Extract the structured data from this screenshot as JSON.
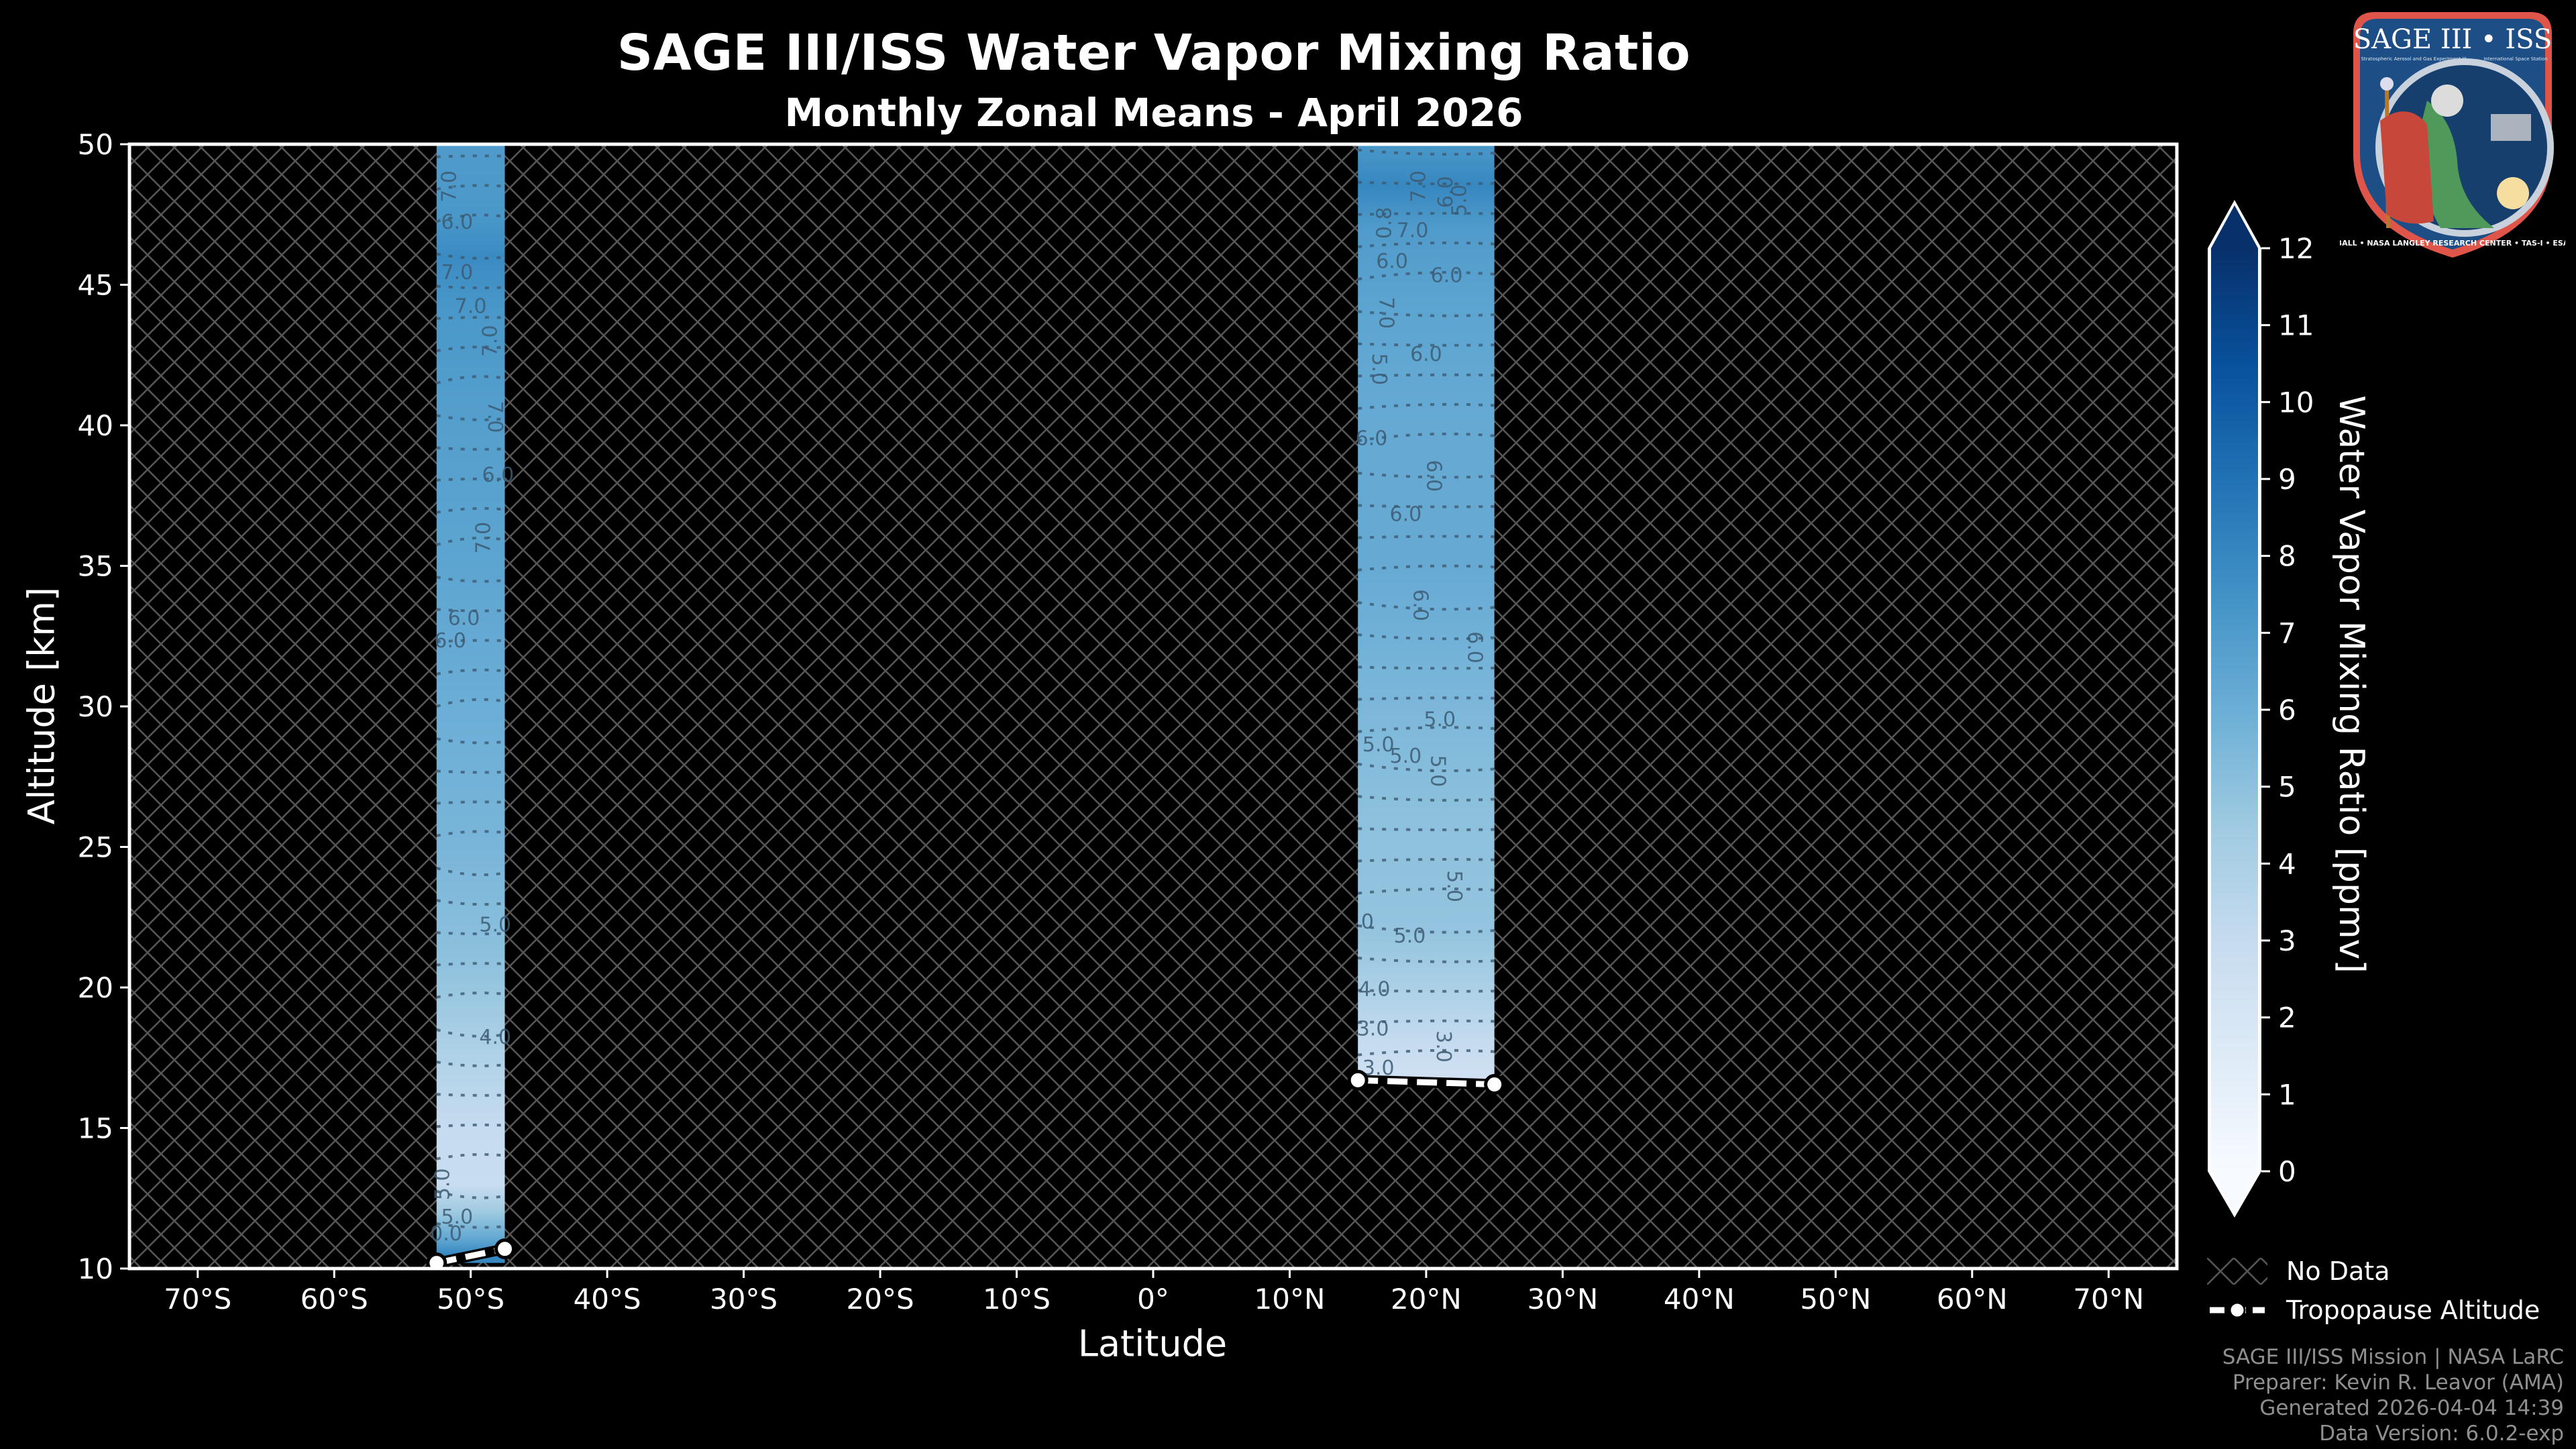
{
  "header": {
    "title": "SAGE III/ISS Water Vapor Mixing Ratio",
    "subtitle": "Monthly Zonal Means - April 2026"
  },
  "logo": {
    "name": "SAGE III • ISS",
    "subtitle_left": "Stratospheric Aerosol and Gas Experiment III",
    "subtitle_right": "International Space Station",
    "ring_text": "BALL • NASA LANGLEY RESEARCH CENTER • TAS-I • ESA"
  },
  "axes": {
    "xlabel": "Latitude",
    "ylabel": "Altitude [km]",
    "xticks": [
      "70°S",
      "60°S",
      "50°S",
      "40°S",
      "30°S",
      "20°S",
      "10°S",
      "0°",
      "10°N",
      "20°N",
      "30°N",
      "40°N",
      "50°N",
      "60°N",
      "70°N"
    ],
    "yticks": [
      "10",
      "15",
      "20",
      "25",
      "30",
      "35",
      "40",
      "45",
      "50"
    ]
  },
  "colorbar": {
    "label": "Water Vapor Mixing Ratio [ppmv]",
    "ticks": [
      "0",
      "1",
      "2",
      "3",
      "4",
      "5",
      "6",
      "7",
      "8",
      "9",
      "10",
      "11",
      "12"
    ],
    "colormap": "Blues",
    "extend": "both"
  },
  "legend": {
    "items": [
      {
        "label": "No Data",
        "symbol": "hatch"
      },
      {
        "label": "Tropopause Altitude",
        "symbol": "dashed-line-circle"
      }
    ]
  },
  "footer": {
    "lines": [
      "SAGE III/ISS Mission | NASA LaRC",
      "Preparer: Kevin R. Leavor (AMA)",
      "Generated 2026-04-04 14:39",
      "Data Version: 6.0.2-exp"
    ]
  },
  "colors": {
    "background": "#000000",
    "hatch": "#555555",
    "axis": "#ffffff",
    "contour": "#3c5a72",
    "cmap_low": "#f7fbff",
    "cmap_high": "#08306b",
    "footer_text": "#8f8f8f"
  },
  "chart_data": {
    "type": "heatmap",
    "title": "SAGE III/ISS Water Vapor Mixing Ratio",
    "subtitle": "Monthly Zonal Means - April 2026",
    "xlabel": "Latitude",
    "ylabel": "Altitude [km]",
    "xlim": [
      -75,
      75
    ],
    "ylim": [
      10,
      50
    ],
    "zlabel": "Water Vapor Mixing Ratio [ppmv]",
    "zlim": [
      0,
      12
    ],
    "grid": false,
    "legend_position": "lower right (outside axes)",
    "no_data_fill": "hatched",
    "columns": [
      {
        "lat_center": -50,
        "lat_min": -52.5,
        "lat_max": -47.5,
        "alt_min": 10.2,
        "alt_max": 50,
        "profile": [
          {
            "alt": 10.5,
            "ppmv": 8.0
          },
          {
            "alt": 11.0,
            "ppmv": 6.5
          },
          {
            "alt": 12.0,
            "ppmv": 4.5
          },
          {
            "alt": 13.0,
            "ppmv": 2.8
          },
          {
            "alt": 15.0,
            "ppmv": 3.0
          },
          {
            "alt": 18.0,
            "ppmv": 4.0
          },
          {
            "alt": 21.0,
            "ppmv": 5.0
          },
          {
            "alt": 25.0,
            "ppmv": 5.6
          },
          {
            "alt": 30.0,
            "ppmv": 6.0
          },
          {
            "alt": 35.0,
            "ppmv": 6.5
          },
          {
            "alt": 40.0,
            "ppmv": 6.8
          },
          {
            "alt": 44.0,
            "ppmv": 7.2
          },
          {
            "alt": 46.0,
            "ppmv": 7.8
          },
          {
            "alt": 47.5,
            "ppmv": 7.2
          },
          {
            "alt": 50.0,
            "ppmv": 7.0
          }
        ]
      },
      {
        "lat_center": 20,
        "lat_min": 15,
        "lat_max": 25,
        "alt_min": 16.6,
        "alt_max": 50,
        "profile": [
          {
            "alt": 17.0,
            "ppmv": 2.5
          },
          {
            "alt": 18.0,
            "ppmv": 3.0
          },
          {
            "alt": 20.0,
            "ppmv": 4.0
          },
          {
            "alt": 22.0,
            "ppmv": 4.8
          },
          {
            "alt": 26.0,
            "ppmv": 5.0
          },
          {
            "alt": 30.0,
            "ppmv": 5.5
          },
          {
            "alt": 35.0,
            "ppmv": 6.2
          },
          {
            "alt": 40.0,
            "ppmv": 6.2
          },
          {
            "alt": 44.0,
            "ppmv": 6.5
          },
          {
            "alt": 47.0,
            "ppmv": 7.0
          },
          {
            "alt": 48.5,
            "ppmv": 8.0
          },
          {
            "alt": 50.0,
            "ppmv": 7.2
          }
        ]
      }
    ],
    "contour_labels": [
      {
        "lat": -51.5,
        "alt": 48.5,
        "text": "7.0",
        "rot": -90
      },
      {
        "lat": -51.0,
        "alt": 47.2,
        "text": "6.0",
        "rot": 0
      },
      {
        "lat": -51.0,
        "alt": 45.4,
        "text": "7.0",
        "rot": 0
      },
      {
        "lat": -50.0,
        "alt": 44.2,
        "text": "7.0",
        "rot": 0
      },
      {
        "lat": -48.5,
        "alt": 43.0,
        "text": "7.0",
        "rot": -90
      },
      {
        "lat": -48.3,
        "alt": 40.3,
        "text": "7.0",
        "rot": 90
      },
      {
        "lat": -48.0,
        "alt": 38.2,
        "text": "6.0",
        "rot": 0
      },
      {
        "lat": -49.0,
        "alt": 36.0,
        "text": "7.0",
        "rot": -90
      },
      {
        "lat": -50.5,
        "alt": 33.1,
        "text": "6.0",
        "rot": 0
      },
      {
        "lat": -51.5,
        "alt": 32.3,
        "text": "6.0",
        "rot": 0
      },
      {
        "lat": -48.2,
        "alt": 22.2,
        "text": "5.0",
        "rot": 0
      },
      {
        "lat": -48.2,
        "alt": 18.2,
        "text": "4.0",
        "rot": 0
      },
      {
        "lat": -52.0,
        "alt": 13.0,
        "text": "5.0",
        "rot": -90
      },
      {
        "lat": -51.0,
        "alt": 11.8,
        "text": "5.0",
        "rot": 0
      },
      {
        "lat": -51.8,
        "alt": 11.2,
        "text": "0.0",
        "rot": 0
      },
      {
        "lat": 19.5,
        "alt": 48.5,
        "text": "7.0",
        "rot": -90
      },
      {
        "lat": 21.5,
        "alt": 48.3,
        "text": "6.0",
        "rot": -90
      },
      {
        "lat": 22.5,
        "alt": 48.0,
        "text": "5.0",
        "rot": -90
      },
      {
        "lat": 19.0,
        "alt": 46.9,
        "text": "7.0",
        "rot": 0
      },
      {
        "lat": 17.0,
        "alt": 47.2,
        "text": "0.8",
        "rot": -90
      },
      {
        "lat": 17.5,
        "alt": 45.8,
        "text": "6.0",
        "rot": 0
      },
      {
        "lat": 21.5,
        "alt": 45.3,
        "text": "6.0",
        "rot": 0
      },
      {
        "lat": 17.0,
        "alt": 44.0,
        "text": "7.0",
        "rot": 90
      },
      {
        "lat": 20.0,
        "alt": 42.5,
        "text": "6.0",
        "rot": 0
      },
      {
        "lat": 16.5,
        "alt": 42.0,
        "text": "5.0",
        "rot": 90
      },
      {
        "lat": 16.0,
        "alt": 39.5,
        "text": "6.0",
        "rot": 0
      },
      {
        "lat": 20.5,
        "alt": 38.2,
        "text": "6.0",
        "rot": 90
      },
      {
        "lat": 18.5,
        "alt": 36.8,
        "text": "6.0",
        "rot": 0
      },
      {
        "lat": 19.5,
        "alt": 33.6,
        "text": "6.0",
        "rot": 90
      },
      {
        "lat": 23.5,
        "alt": 32.1,
        "text": "6.0",
        "rot": 90
      },
      {
        "lat": 21.0,
        "alt": 29.5,
        "text": "5.0",
        "rot": 0
      },
      {
        "lat": 16.5,
        "alt": 28.6,
        "text": "5.0",
        "rot": 0
      },
      {
        "lat": 18.5,
        "alt": 28.2,
        "text": "5.0",
        "rot": 0
      },
      {
        "lat": 20.8,
        "alt": 27.7,
        "text": "5.0",
        "rot": 90
      },
      {
        "lat": 22.0,
        "alt": 23.6,
        "text": "5.0",
        "rot": 90
      },
      {
        "lat": 15.7,
        "alt": 22.3,
        "text": "0",
        "rot": 0
      },
      {
        "lat": 18.8,
        "alt": 21.8,
        "text": "5.0",
        "rot": 0
      },
      {
        "lat": 16.2,
        "alt": 19.9,
        "text": "4.0",
        "rot": 0
      },
      {
        "lat": 16.1,
        "alt": 18.5,
        "text": "3.0",
        "rot": 0
      },
      {
        "lat": 21.2,
        "alt": 17.9,
        "text": "3.0",
        "rot": 90
      },
      {
        "lat": 16.5,
        "alt": 17.1,
        "text": "3.0",
        "rot": 0
      }
    ],
    "tropopause": [
      {
        "lat": -52.5,
        "alt": 10.2
      },
      {
        "lat": -47.5,
        "alt": 10.7
      },
      {
        "lat": 15.0,
        "alt": 16.7
      },
      {
        "lat": 25.0,
        "alt": 16.55
      }
    ]
  }
}
